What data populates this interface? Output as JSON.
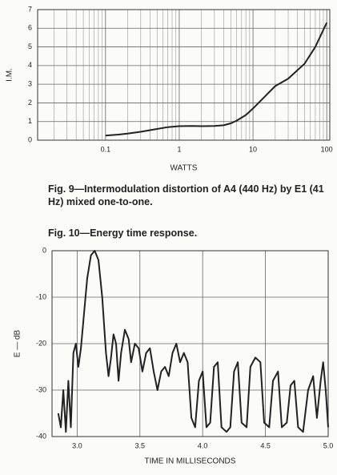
{
  "chart_data": [
    {
      "type": "line",
      "scale": "log-x",
      "xlabel": "WATTS",
      "ylabel": "I.M.",
      "caption": "Fig. 9—Intermodulation distortion of A4 (440 Hz) by E1 (41 Hz) mixed one-to-one.",
      "color": "#222",
      "grid": true,
      "x": [
        0.1,
        0.15,
        0.2,
        0.3,
        0.5,
        0.7,
        1,
        1.5,
        2,
        3,
        4,
        5,
        6,
        8,
        10,
        15,
        20,
        30,
        50,
        70,
        100
      ],
      "values": [
        0.25,
        0.3,
        0.35,
        0.45,
        0.6,
        0.7,
        0.75,
        0.76,
        0.75,
        0.76,
        0.8,
        0.9,
        1.05,
        1.35,
        1.7,
        2.4,
        2.9,
        3.3,
        4.1,
        5.0,
        6.3
      ],
      "xlim": [
        0.012,
        110
      ],
      "xticks": [
        0.1,
        1,
        10,
        100
      ],
      "ylim": [
        0,
        7
      ],
      "yticks": [
        0,
        1,
        2,
        3,
        4,
        5,
        6,
        7
      ]
    },
    {
      "type": "line",
      "xlabel": "TIME IN MILLISECONDS",
      "ylabel": "E — dB",
      "caption": "Fig. 10—Energy time response.",
      "color": "#222",
      "grid": true,
      "x": [
        2.85,
        2.87,
        2.89,
        2.91,
        2.93,
        2.95,
        2.97,
        2.99,
        3.01,
        3.03,
        3.05,
        3.08,
        3.11,
        3.14,
        3.17,
        3.2,
        3.23,
        3.25,
        3.27,
        3.29,
        3.31,
        3.33,
        3.35,
        3.38,
        3.41,
        3.43,
        3.46,
        3.49,
        3.52,
        3.55,
        3.58,
        3.61,
        3.64,
        3.67,
        3.7,
        3.73,
        3.76,
        3.79,
        3.82,
        3.85,
        3.88,
        3.91,
        3.94,
        3.97,
        4.0,
        4.03,
        4.06,
        4.09,
        4.12,
        4.15,
        4.19,
        4.22,
        4.25,
        4.28,
        4.31,
        4.35,
        4.38,
        4.42,
        4.46,
        4.49,
        4.53,
        4.56,
        4.6,
        4.63,
        4.67,
        4.7,
        4.73,
        4.76,
        4.8,
        4.84,
        4.88,
        4.91,
        4.94,
        4.96,
        4.98,
        5.0
      ],
      "values": [
        -35,
        -38,
        -30,
        -39,
        -28,
        -38,
        -22,
        -20,
        -25,
        -21,
        -15,
        -6,
        -1,
        0,
        -2,
        -10,
        -22,
        -27,
        -23,
        -18,
        -20,
        -28,
        -22,
        -17,
        -19,
        -24,
        -20,
        -21,
        -26,
        -22,
        -21,
        -26,
        -30,
        -26,
        -25,
        -27,
        -22,
        -20,
        -24,
        -22,
        -24,
        -36,
        -38,
        -28,
        -26,
        -38,
        -37,
        -25,
        -24,
        -38,
        -39,
        -38,
        -26,
        -24,
        -37,
        -38,
        -25,
        -23,
        -24,
        -37,
        -38,
        -28,
        -26,
        -38,
        -37,
        -29,
        -28,
        -38,
        -39,
        -30,
        -27,
        -36,
        -28,
        -24,
        -30,
        -38
      ],
      "xlim": [
        2.8,
        5.0
      ],
      "xticks": [
        {
          "value": 3,
          "label": "3.0"
        },
        3.5,
        {
          "value": 4,
          "label": "4.0"
        },
        4.5,
        {
          "value": 5,
          "label": "5.0"
        }
      ],
      "ylim": [
        -40,
        0
      ],
      "yticks": [
        -40,
        -30,
        -20,
        -10,
        0
      ]
    }
  ]
}
